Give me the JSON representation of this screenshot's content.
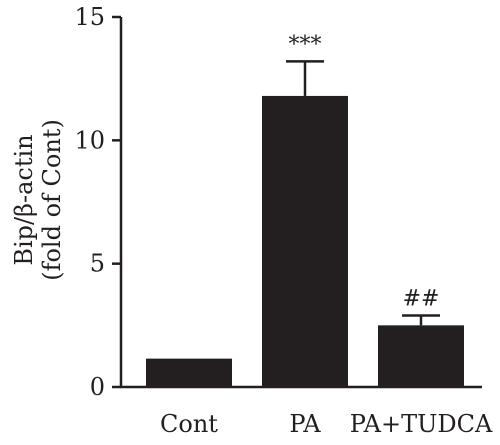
{
  "chart_data": {
    "type": "bar",
    "categories": [
      "Cont",
      "PA",
      "PA+TUDCA"
    ],
    "values": [
      1.15,
      11.8,
      2.5
    ],
    "errors": [
      0,
      1.4,
      0.4
    ],
    "annotations": [
      "",
      "***",
      "##"
    ],
    "ylabel_line1": "Bip/β-actin",
    "ylabel_line2": "(fold of Cont)",
    "ylim": [
      0,
      15
    ],
    "yticks": [
      0,
      5,
      10,
      15
    ],
    "grid": false,
    "legend": "none",
    "colors": {
      "bar": "#231f20",
      "axis": "#231f20",
      "background": "#ffffff"
    }
  }
}
